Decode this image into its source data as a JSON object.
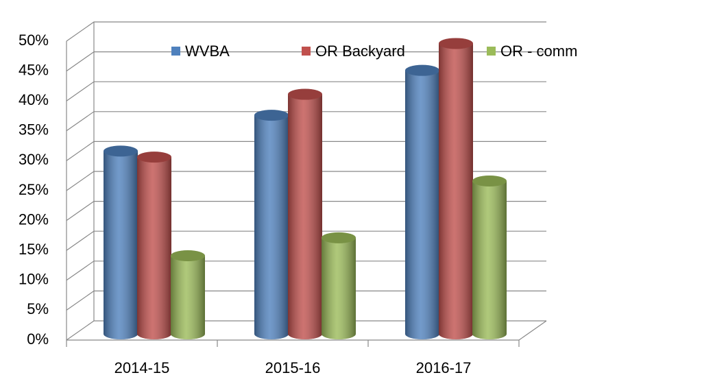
{
  "chart_data": {
    "type": "bar",
    "categories": [
      "2014-15",
      "2015-16",
      "2016-17"
    ],
    "series": [
      {
        "name": "WVBA",
        "color": "#4f81bd",
        "values": [
          30,
          36,
          43.5
        ]
      },
      {
        "name": "OR Backyard",
        "color": "#c0504d",
        "values": [
          29,
          39.5,
          48
        ]
      },
      {
        "name": "OR - comm",
        "color": "#9bbb59",
        "values": [
          12.5,
          15.5,
          25
        ]
      }
    ],
    "ylim": [
      0,
      50
    ],
    "yticks": [
      {
        "value": 0,
        "label": "0%"
      },
      {
        "value": 5,
        "label": "5%"
      },
      {
        "value": 10,
        "label": "10%"
      },
      {
        "value": 15,
        "label": "15%"
      },
      {
        "value": 20,
        "label": "20%"
      },
      {
        "value": 25,
        "label": "25%"
      },
      {
        "value": 30,
        "label": "30%"
      },
      {
        "value": 35,
        "label": "35%"
      },
      {
        "value": 40,
        "label": "40%"
      },
      {
        "value": 45,
        "label": "45%"
      },
      {
        "value": 50,
        "label": "50%"
      }
    ],
    "grid": true,
    "legend": "top"
  }
}
